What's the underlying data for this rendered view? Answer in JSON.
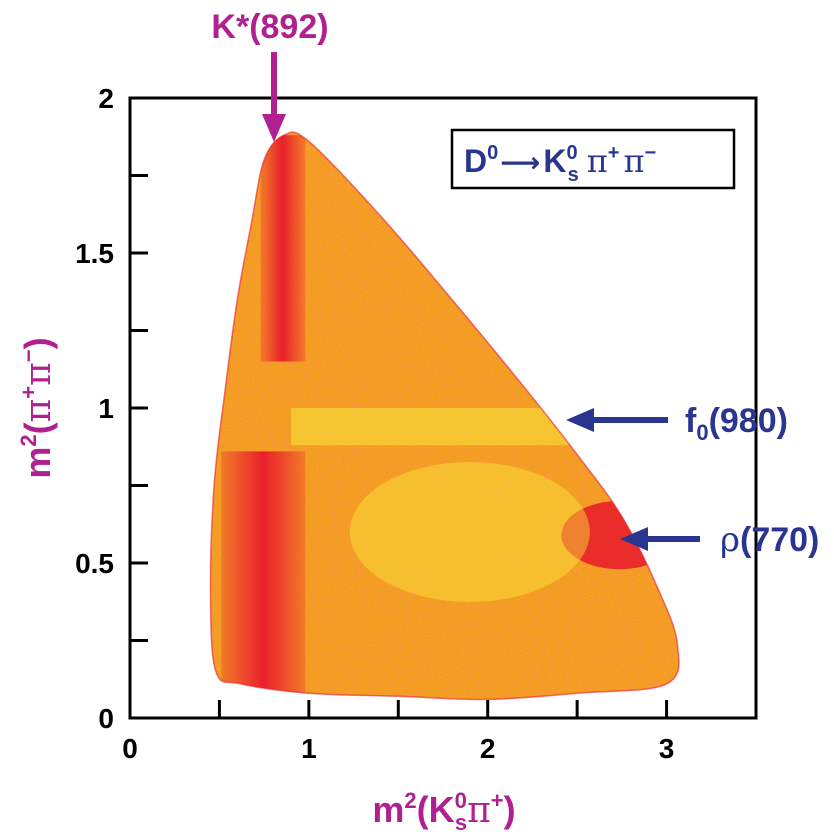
{
  "chart_data": {
    "type": "heatmap",
    "title": "",
    "xlabel": {
      "base": "m",
      "sup": "2",
      "open": "(K",
      "sub_sup": "0",
      "sub": "s",
      "pi": "π",
      "pi_sup": "+",
      "close": ")"
    },
    "ylabel": {
      "base": "m",
      "sup": "2",
      "open": "(",
      "pi1": "π",
      "sup1": "+",
      "pi2": "π",
      "sup2": "−",
      "close": ")"
    },
    "xlim": [
      0,
      3.5
    ],
    "ylim": [
      0,
      2
    ],
    "x_ticks": [
      {
        "value": 0,
        "label": "0"
      },
      {
        "value": 1,
        "label": "1"
      },
      {
        "value": 2,
        "label": "2"
      },
      {
        "value": 3,
        "label": "3"
      }
    ],
    "y_ticks": [
      {
        "value": 0,
        "label": "0"
      },
      {
        "value": 0.5,
        "label": "0.5"
      },
      {
        "value": 1,
        "label": "1"
      },
      {
        "value": 1.5,
        "label": "1.5"
      },
      {
        "value": 2,
        "label": "2"
      }
    ],
    "x_minor_ticks": [
      0.5,
      1.5,
      2.5
    ],
    "y_minor_ticks": [
      0.25,
      0.75,
      1.25,
      1.75
    ],
    "process_box": {
      "D": "D",
      "D_sup": "0",
      "arrow": "⟶",
      "K": "K",
      "K_sup": "0",
      "K_sub": "s",
      "pi1": "π",
      "pi1_sup": "+",
      "pi2": "π",
      "pi2_sup": "−"
    },
    "annotations": [
      {
        "id": "kstar",
        "label": "K*(892)",
        "x": 0.8,
        "y": 1.88,
        "direction": "down",
        "color": "#b0208f"
      },
      {
        "id": "f0",
        "label_base": "f",
        "label_sub": "0",
        "label_rest": "(980)",
        "x": 2.4,
        "y": 0.97,
        "direction": "left",
        "color": "#2a3590"
      },
      {
        "id": "rho",
        "label_greek": "ρ",
        "label_rest": "(770)",
        "x": 2.72,
        "y": 0.59,
        "direction": "left",
        "color": "#2a3590"
      }
    ],
    "boundary": [
      [
        0.48,
        0.15
      ],
      [
        0.45,
        0.4
      ],
      [
        0.47,
        0.75
      ],
      [
        0.53,
        1.05
      ],
      [
        0.6,
        1.35
      ],
      [
        0.68,
        1.6
      ],
      [
        0.75,
        1.8
      ],
      [
        0.86,
        1.88
      ],
      [
        1.0,
        1.86
      ],
      [
        1.4,
        1.62
      ],
      [
        1.8,
        1.35
      ],
      [
        2.2,
        1.07
      ],
      [
        2.5,
        0.85
      ],
      [
        2.75,
        0.65
      ],
      [
        2.95,
        0.42
      ],
      [
        3.06,
        0.24
      ],
      [
        3.0,
        0.11
      ],
      [
        2.5,
        0.08
      ],
      [
        2.0,
        0.06
      ],
      [
        1.5,
        0.07
      ],
      [
        1.0,
        0.08
      ],
      [
        0.62,
        0.11
      ]
    ],
    "dense_bands": [
      {
        "name": "K*(892) vertical band",
        "x0": 0.73,
        "x1": 0.98,
        "y0": 0.05,
        "y1": 1.88,
        "gap_y0": 0.86,
        "gap_y1": 1.15
      },
      {
        "name": "rho(770) horizontal band",
        "y0": 0.48,
        "y1": 0.7,
        "x0": 2.3,
        "x1": 2.95
      },
      {
        "name": "f0(980) horizontal band",
        "y0": 0.88,
        "y1": 1.0,
        "x0": 0.9,
        "x1": 2.5
      }
    ],
    "colors": {
      "background": "#ffffff",
      "low": "#f6e12e",
      "mid": "#f26522",
      "high": "#e8192c",
      "magenta": "#b0208f",
      "blue": "#2a3590"
    }
  }
}
